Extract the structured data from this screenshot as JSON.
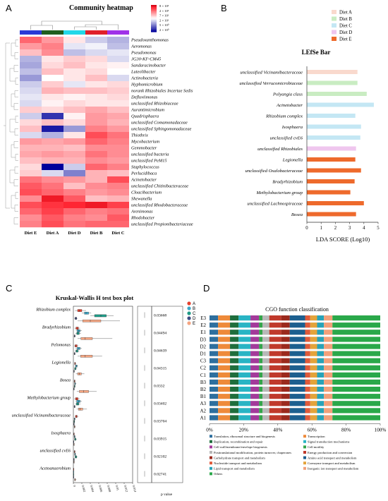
{
  "panels": {
    "A": "A",
    "B": "B",
    "C": "C",
    "D": "D"
  },
  "chart_data": [
    {
      "type": "heatmap",
      "title": "Community heatmap",
      "legend_scale": [
        "8 × 10²",
        "2 × 10²",
        "7 × 10¹",
        "2 × 10¹",
        "5 × 10⁰",
        "2 × 10⁰"
      ],
      "columns": [
        "Diet E",
        "Diet A",
        "Diet D",
        "Diet B",
        "Diet C"
      ],
      "column_colors": [
        "#2a3ad6",
        "#1f5e1f",
        "#22d8e8",
        "#e0202a",
        "#a032e8"
      ],
      "rows": [
        {
          "name": "Pseudoxanthomonas",
          "values": [
            1.2,
            0.8,
            0.2,
            -0.4,
            -0.6
          ]
        },
        {
          "name": "Aeromonas",
          "values": [
            0.8,
            1.0,
            -0.2,
            -0.1,
            -0.5
          ]
        },
        {
          "name": "Pseudomonas",
          "values": [
            0.5,
            0.9,
            -0.5,
            -0.3,
            -0.2
          ]
        },
        {
          "name": "JG30-KF-CM45",
          "values": [
            -0.6,
            0.2,
            0.4,
            0.3,
            -0.3
          ]
        },
        {
          "name": "Sandaracinobacter",
          "values": [
            -0.7,
            0.3,
            0.5,
            0.2,
            0.1
          ]
        },
        {
          "name": "Luteolibacter",
          "values": [
            -0.5,
            0.5,
            0.2,
            0.3,
            0.0
          ]
        },
        {
          "name": "Actinobacteria",
          "values": [
            -0.8,
            0.0,
            0.2,
            0.5,
            -0.3
          ]
        },
        {
          "name": "Hyphomicrobium",
          "values": [
            -0.4,
            0.4,
            -0.2,
            0.2,
            0.3
          ]
        },
        {
          "name": "norank Rhizobiales Incertae Sedis",
          "values": [
            -0.3,
            0.6,
            0.5,
            0.5,
            0.4
          ]
        },
        {
          "name": "Defluviimonas",
          "values": [
            -0.2,
            0.2,
            0.1,
            0.2,
            0.3
          ]
        },
        {
          "name": "unclassified Rhizobiaceae",
          "values": [
            -0.3,
            0.1,
            0.3,
            0.2,
            0.2
          ]
        },
        {
          "name": "Aurantimicrobium",
          "values": [
            0.4,
            0.3,
            0.5,
            0.7,
            0.5
          ]
        },
        {
          "name": "Quadrisphaera",
          "values": [
            -0.4,
            -1.6,
            0.1,
            0.8,
            0.7
          ]
        },
        {
          "name": "unclassified Comamonadaceae",
          "values": [
            0.3,
            0.5,
            0.3,
            0.8,
            0.6
          ]
        },
        {
          "name": "unclassified Sphingomonadaceae",
          "values": [
            0.5,
            -1.8,
            -0.8,
            1.0,
            0.8
          ]
        },
        {
          "name": "Thiothrix",
          "values": [
            -0.3,
            -0.6,
            0.2,
            1.4,
            1.1
          ]
        },
        {
          "name": "Mycobacterium",
          "values": [
            0.8,
            0.7,
            0.8,
            1.2,
            1.0
          ]
        },
        {
          "name": "Gemmobacter",
          "values": [
            0.6,
            0.6,
            0.5,
            0.9,
            0.9
          ]
        },
        {
          "name": "unclassified bacteria",
          "values": [
            0.7,
            0.8,
            0.7,
            1.1,
            0.9
          ]
        },
        {
          "name": "unclassified PeM15",
          "values": [
            0.5,
            0.6,
            0.6,
            0.9,
            0.8
          ]
        },
        {
          "name": "Staphylococcus",
          "values": [
            0.3,
            -2.0,
            -0.4,
            1.2,
            1.0
          ]
        },
        {
          "name": "Perlucidibaca",
          "values": [
            0.4,
            -0.3,
            -1.0,
            0.6,
            0.5
          ]
        },
        {
          "name": "Acinetobacter",
          "values": [
            1.1,
            0.9,
            0.8,
            0.6,
            1.4
          ]
        },
        {
          "name": "unclassified Chitinibacteraceae",
          "values": [
            1.3,
            1.1,
            0.5,
            0.9,
            1.0
          ]
        },
        {
          "name": "Cloacibacterium",
          "values": [
            1.4,
            1.2,
            1.0,
            0.8,
            0.9
          ]
        },
        {
          "name": "Shewanella",
          "values": [
            0.9,
            1.8,
            1.3,
            0.5,
            0.6
          ]
        },
        {
          "name": "unclassified Rhodobacteraceae",
          "values": [
            1.4,
            1.6,
            1.7,
            1.8,
            1.5
          ]
        },
        {
          "name": "Arenimonas",
          "values": [
            1.2,
            1.5,
            1.2,
            1.0,
            1.1
          ]
        },
        {
          "name": "Rhodobacter",
          "values": [
            0.9,
            1.3,
            1.0,
            0.9,
            1.3
          ]
        },
        {
          "name": "unclassified Propionibacteriaceae",
          "values": [
            1.0,
            1.4,
            1.1,
            1.2,
            1.2
          ]
        }
      ]
    },
    {
      "type": "bar",
      "title": "LEfSe Bar",
      "xlabel": "LDA SCORE (Log10)",
      "xlim": [
        0,
        5
      ],
      "xticks": [
        "0",
        "1",
        "2",
        "3",
        "4",
        "5"
      ],
      "legend": [
        {
          "name": "Diet A",
          "color": "#f9d9cd"
        },
        {
          "name": "Diet B",
          "color": "#c9ecc2"
        },
        {
          "name": "Diet C",
          "color": "#c4e7f4"
        },
        {
          "name": "Diet D",
          "color": "#efc6ee"
        },
        {
          "name": "Diet E",
          "color": "#ee6a2c"
        }
      ],
      "bars": [
        {
          "name": "unclassified Vicinamibacteraceae",
          "value": 3.55,
          "group": "Diet A",
          "color": "#f9d9cd"
        },
        {
          "name": "unclassified Verrucomicrobiaceae",
          "value": 3.55,
          "group": "Diet B",
          "color": "#c9ecc2"
        },
        {
          "name": "Polyangia class",
          "value": 4.2,
          "group": "Diet B",
          "color": "#c9ecc2"
        },
        {
          "name": "Acinetobacter",
          "value": 4.7,
          "group": "Diet C",
          "color": "#c4e7f4"
        },
        {
          "name": "Rhizobium complex",
          "value": 3.4,
          "group": "Diet C",
          "color": "#c4e7f4"
        },
        {
          "name": "Isosphaera",
          "value": 3.8,
          "group": "Diet C",
          "color": "#c4e7f4"
        },
        {
          "name": "unclassified cvE6",
          "value": 3.75,
          "group": "Diet C",
          "color": "#c4e7f4"
        },
        {
          "name": "unclassified Rhizobiales",
          "value": 3.45,
          "group": "Diet D",
          "color": "#efc6ee"
        },
        {
          "name": "Legionella",
          "value": 3.4,
          "group": "Diet E",
          "color": "#ee6a2c"
        },
        {
          "name": "unclassified Oxalobacteraceae",
          "value": 3.8,
          "group": "Diet E",
          "color": "#ee6a2c"
        },
        {
          "name": "Bradyrhizobium",
          "value": 3.35,
          "group": "Diet E",
          "color": "#ee6a2c"
        },
        {
          "name": "Methylobacterium group",
          "value": 3.05,
          "group": "Diet E",
          "color": "#ee6a2c"
        },
        {
          "name": "unclassified Lachnospiraceae",
          "value": 4.0,
          "group": "Diet E",
          "color": "#ee6a2c"
        },
        {
          "name": "Bosea",
          "value": 3.45,
          "group": "Diet E",
          "color": "#ee6a2c"
        }
      ]
    },
    {
      "type": "box",
      "title": "Kruskal-Wallis H test box plot",
      "pvalue_label": "p value",
      "xticks": [
        "0",
        "0.002",
        "0.004",
        "0.006",
        "0.008",
        "0.01",
        "0.012",
        "0.014"
      ],
      "xlim": [
        0,
        0.014
      ],
      "groups": [
        {
          "name": "A",
          "color": "#e5412e"
        },
        {
          "name": "B",
          "color": "#3ea7c8"
        },
        {
          "name": "C",
          "color": "#1f9a86"
        },
        {
          "name": "D",
          "color": "#3d4b82"
        },
        {
          "name": "E",
          "color": "#f4a582"
        }
      ],
      "taxa": [
        {
          "name": "Rhizobium complex",
          "p": "0.03668",
          "boxes": [
            [
              0.0004,
              0.001,
              0.0014,
              0.002,
              0.003
            ],
            [
              0.002,
              0.0026,
              0.003,
              0.0036,
              0.0042
            ],
            [
              0.004,
              0.005,
              0.0065,
              0.0078,
              0.0095
            ],
            [
              0.0002,
              0.0004,
              0.0006,
              0.0008,
              0.001
            ],
            [
              0.001,
              0.0022,
              0.004,
              0.0065,
              0.011
            ]
          ]
        },
        {
          "name": "Bradyrhizobium",
          "p": "0.04494",
          "boxes": [
            [
              0.0003,
              0.0006,
              0.0009,
              0.0012,
              0.0016
            ],
            [
              0.0006,
              0.0009,
              0.0012,
              0.0016,
              0.002
            ],
            [
              0.0005,
              0.0008,
              0.001,
              0.0014,
              0.0018
            ],
            [
              0.0001,
              0.0002,
              0.0003,
              0.0004,
              0.0006
            ],
            [
              0.001,
              0.0018,
              0.0028,
              0.0045,
              0.0092
            ]
          ]
        },
        {
          "name": "Pelomonas",
          "p": "0.04639",
          "boxes": [
            [
              0.0002,
              0.0004,
              0.0006,
              0.0009,
              0.0012
            ],
            [
              0.0005,
              0.0009,
              0.0012,
              0.0016,
              0.002
            ],
            [
              0.0003,
              0.0006,
              0.0008,
              0.0011,
              0.0014
            ],
            [
              0.0001,
              0.0002,
              0.0003,
              0.0004,
              0.0005
            ],
            [
              0.001,
              0.0017,
              0.0028,
              0.0045,
              0.0068
            ]
          ]
        },
        {
          "name": "Legionella",
          "p": "0.04315",
          "boxes": [
            [
              0.0002,
              0.0003,
              0.0004,
              0.0005,
              0.0007
            ],
            [
              0.0003,
              0.0005,
              0.0007,
              0.0009,
              0.0011
            ],
            [
              0.0002,
              0.0003,
              0.0005,
              0.0006,
              0.0008
            ],
            [
              0.0001,
              0.0001,
              0.0002,
              0.0002,
              0.0003
            ],
            [
              0.0006,
              0.001,
              0.0014,
              0.0019,
              0.0026
            ]
          ]
        },
        {
          "name": "Bosea",
          "p": "0.0332",
          "boxes": [
            [
              0.0001,
              0.0002,
              0.0003,
              0.0004,
              0.0005
            ],
            [
              0.0002,
              0.0003,
              0.0004,
              0.0005,
              0.0007
            ],
            [
              0.0001,
              0.0002,
              0.0003,
              0.0004,
              0.0005
            ],
            [
              0.0001,
              0.0001,
              0.0001,
              0.0002,
              0.0002
            ],
            [
              0.0008,
              0.0014,
              0.0024,
              0.0036,
              0.0055
            ]
          ]
        },
        {
          "name": "Methylobacterium group",
          "p": "0.03402",
          "boxes": [
            [
              0.0002,
              0.0005,
              0.0008,
              0.0011,
              0.0015
            ],
            [
              0.0005,
              0.0008,
              0.0012,
              0.0016,
              0.002
            ],
            [
              0.0004,
              0.0007,
              0.001,
              0.0013,
              0.0017
            ],
            [
              0.0001,
              0.0002,
              0.0003,
              0.0004,
              0.0005
            ],
            [
              0.0008,
              0.0012,
              0.0016,
              0.0022,
              0.0032
            ]
          ]
        },
        {
          "name": "unclassified Vicinamibacteraceae",
          "p": "0.03704",
          "boxes": [
            [
              0.0003,
              0.0005,
              0.0007,
              0.0009,
              0.0012
            ],
            [
              0.0001,
              0.0002,
              0.0003,
              0.0004,
              0.0005
            ],
            [
              0.0001,
              0.0001,
              0.0002,
              0.0003,
              0.0004
            ],
            [
              0.0,
              0.0001,
              0.0001,
              0.0001,
              0.0002
            ],
            [
              0.0001,
              0.0002,
              0.0003,
              0.0004,
              0.0005
            ]
          ]
        },
        {
          "name": "Isosphaera",
          "p": "0.03915",
          "boxes": [
            [
              0.0,
              0.0001,
              0.0001,
              0.0002,
              0.0003
            ],
            [
              0.0001,
              0.0002,
              0.0003,
              0.0004,
              0.0005
            ],
            [
              0.0002,
              0.0003,
              0.0004,
              0.0006,
              0.0008
            ],
            [
              0.0,
              0.0,
              0.0001,
              0.0001,
              0.0001
            ],
            [
              0.0,
              0.0001,
              0.0001,
              0.0001,
              0.0002
            ]
          ]
        },
        {
          "name": "unclassified cvE6",
          "p": "0.02102",
          "boxes": [
            [
              0.0001,
              0.0002,
              0.0003,
              0.0004,
              0.0005
            ],
            [
              0.0002,
              0.0003,
              0.0004,
              0.0005,
              0.0006
            ],
            [
              0.0003,
              0.0004,
              0.0006,
              0.0008,
              0.001
            ],
            [
              0.0,
              0.0001,
              0.0001,
              0.0001,
              0.0002
            ],
            [
              0.0,
              0.0001,
              0.0001,
              0.0002,
              0.0003
            ]
          ]
        },
        {
          "name": "Acetoanaerobium",
          "p": "0.02741",
          "boxes": [
            [
              0.0,
              0.0,
              0.0001,
              0.0001,
              0.0001
            ],
            [
              0.0,
              0.0,
              0.0,
              0.0001,
              0.0001
            ],
            [
              0.0,
              0.0,
              0.0,
              0.0,
              0.0001
            ],
            [
              0.0,
              0.0,
              0.0,
              0.0,
              0.0
            ],
            [
              0.0002,
              0.0003,
              0.0004,
              0.0005,
              0.0007
            ]
          ]
        }
      ]
    },
    {
      "type": "bar",
      "stacked": true,
      "title": "CGO function classification",
      "xlim": [
        0,
        100
      ],
      "xticks": [
        "0%",
        "20%",
        "40%",
        "60%",
        "80%",
        "100%"
      ],
      "categories": [
        "E3",
        "E2",
        "E1",
        "D3",
        "D2",
        "D1",
        "C3",
        "C2",
        "C1",
        "B3",
        "B2",
        "B1",
        "A3",
        "A2",
        "A1"
      ],
      "series": [
        {
          "name": "Translation, ribosomal structure and biogenesis",
          "color": "#2e6f9e",
          "value": 5
        },
        {
          "name": "Transcription",
          "color": "#ee8a3a",
          "value": 7
        },
        {
          "name": "Replication, recombination and repair",
          "color": "#1f6e3d",
          "value": 5
        },
        {
          "name": "Signal transduction mechanisms",
          "color": "#29b4c4",
          "value": 7
        },
        {
          "name": "Cell wall/membrane/envelope biogenesis",
          "color": "#a33a9a",
          "value": 5
        },
        {
          "name": "Cell motility",
          "color": "#34a54a",
          "value": 2
        },
        {
          "name": "Posttranslational modification, protein turnover, chaperones",
          "color": "#b8b8b8",
          "value": 4
        },
        {
          "name": "Energy production and conversion",
          "color": "#c0392b",
          "value": 7
        },
        {
          "name": "Carbohydrate transport and metabolism",
          "color": "#9b2a1e",
          "value": 5
        },
        {
          "name": "Amino acid transport and metabolism",
          "color": "#1c5f8f",
          "value": 9
        },
        {
          "name": "Nucleotide transport and metabolism",
          "color": "#e05a3a",
          "value": 3
        },
        {
          "name": "Coenzyme transport and metabolism",
          "color": "#e3a33a",
          "value": 4
        },
        {
          "name": "Lipid transport and metabolism",
          "color": "#27a3b8",
          "value": 4
        },
        {
          "name": "Inorganic ion transport and metabolism",
          "color": "#f2a07a",
          "value": 5
        },
        {
          "name": "Others",
          "color": "#2aa84a",
          "value": 28
        }
      ]
    }
  ]
}
